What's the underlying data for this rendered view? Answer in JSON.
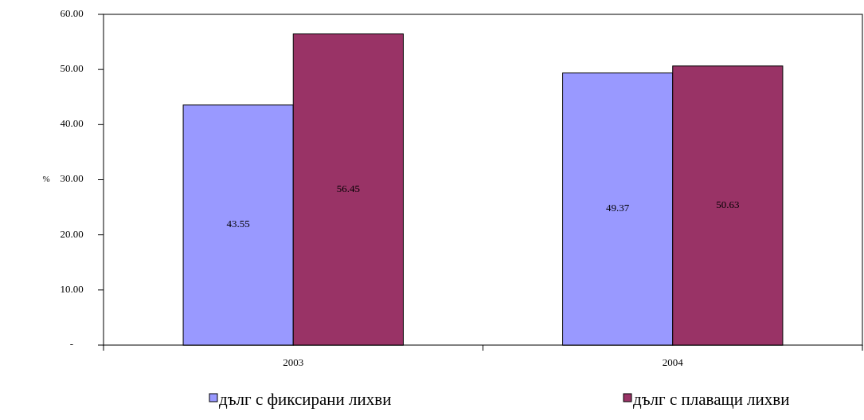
{
  "chart_data": {
    "type": "bar",
    "categories": [
      "2003",
      "2004"
    ],
    "ylabel": "%",
    "series": [
      {
        "name": "дълг с фиксирани лихви",
        "color": "#9999ff",
        "values": [
          43.55,
          49.37
        ]
      },
      {
        "name": "дълг с плаващи лихви",
        "color": "#993366",
        "values": [
          56.45,
          50.63
        ]
      }
    ],
    "ylim": [
      0,
      60
    ],
    "yticks": [
      {
        "value": 0,
        "label": "-"
      },
      {
        "value": 10,
        "label": "10.00"
      },
      {
        "value": 20,
        "label": "20.00"
      },
      {
        "value": 30,
        "label": "30.00"
      },
      {
        "value": 40,
        "label": "40.00"
      },
      {
        "value": 50,
        "label": "50.00"
      },
      {
        "value": 60,
        "label": "60.00"
      }
    ],
    "data_labels": true,
    "grid": false,
    "legend": "bottom"
  }
}
